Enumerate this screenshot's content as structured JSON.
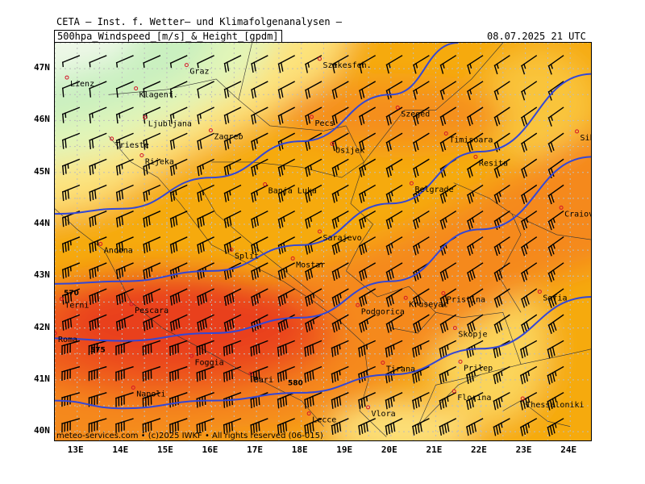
{
  "header": {
    "org": "CETA – Inst. f. Wetter– und Klimafolgenanalysen –",
    "title": "500hpa_Windspeed_[m/s]_&_Height_[gpdm]",
    "valid_time": "08.07.2025 21 UTC"
  },
  "axes": {
    "lat_labels": [
      "47N",
      "46N",
      "45N",
      "44N",
      "43N",
      "42N",
      "41N",
      "40N"
    ],
    "lat_values": [
      47,
      46,
      45,
      44,
      43,
      42,
      41,
      40
    ],
    "lon_labels": [
      "13E",
      "14E",
      "15E",
      "16E",
      "17E",
      "18E",
      "19E",
      "20E",
      "21E",
      "22E",
      "23E",
      "24E"
    ],
    "lon_values": [
      13,
      14,
      15,
      16,
      17,
      18,
      19,
      20,
      21,
      22,
      23,
      24
    ]
  },
  "extent": {
    "lon_min": 12.5,
    "lon_max": 24.5,
    "lat_min": 39.8,
    "lat_max": 47.5
  },
  "contours": [
    {
      "label": "570",
      "points": [
        [
          12.5,
          42.85
        ],
        [
          14,
          42.9
        ],
        [
          16,
          43.1
        ],
        [
          18,
          43.6
        ],
        [
          20,
          44.4
        ],
        [
          22,
          45.4
        ],
        [
          24.5,
          46.9
        ]
      ]
    },
    {
      "label": "575",
      "points": [
        [
          12.5,
          41.8
        ],
        [
          14,
          41.75
        ],
        [
          16,
          41.9
        ],
        [
          18,
          42.2
        ],
        [
          20,
          42.9
        ],
        [
          22,
          43.9
        ],
        [
          24.5,
          45.3
        ]
      ]
    },
    {
      "label": "580",
      "points": [
        [
          12.5,
          40.6
        ],
        [
          14,
          40.45
        ],
        [
          16,
          40.6
        ],
        [
          18,
          40.75
        ],
        [
          20,
          41.1
        ],
        [
          22,
          41.6
        ],
        [
          24.5,
          42.6
        ]
      ]
    },
    {
      "label": "",
      "points": [
        [
          12.5,
          44.2
        ],
        [
          14,
          44.3
        ],
        [
          16,
          44.9
        ],
        [
          18,
          45.6
        ],
        [
          20,
          46.5
        ],
        [
          21.5,
          47.5
        ]
      ]
    }
  ],
  "cities": [
    {
      "name": "Lienz",
      "lon": 12.77,
      "lat": 46.83
    },
    {
      "name": "Graz",
      "lon": 15.44,
      "lat": 47.07
    },
    {
      "name": "Szekesfeh.",
      "lon": 18.41,
      "lat": 47.19
    },
    {
      "name": "Klagenf.",
      "lon": 14.31,
      "lat": 46.62
    },
    {
      "name": "Szeged",
      "lon": 20.15,
      "lat": 46.25
    },
    {
      "name": "Ljubljana",
      "lon": 14.51,
      "lat": 46.06
    },
    {
      "name": "Pecs",
      "lon": 18.23,
      "lat": 46.07
    },
    {
      "name": "Zagreb",
      "lon": 15.98,
      "lat": 45.81
    },
    {
      "name": "Trieste",
      "lon": 13.77,
      "lat": 45.65
    },
    {
      "name": "Timisoara",
      "lon": 21.23,
      "lat": 45.75
    },
    {
      "name": "Sibiu",
      "lon": 24.15,
      "lat": 45.79
    },
    {
      "name": "Osijek",
      "lon": 18.69,
      "lat": 45.55
    },
    {
      "name": "Rijeka",
      "lon": 14.44,
      "lat": 45.33
    },
    {
      "name": "Resita",
      "lon": 21.89,
      "lat": 45.3
    },
    {
      "name": "Banja Luka",
      "lon": 17.19,
      "lat": 44.77
    },
    {
      "name": "Belgrade",
      "lon": 20.46,
      "lat": 44.79
    },
    {
      "name": "Craiova",
      "lon": 23.8,
      "lat": 44.32
    },
    {
      "name": "Sarajevo",
      "lon": 18.41,
      "lat": 43.86
    },
    {
      "name": "Ancona",
      "lon": 13.52,
      "lat": 43.62
    },
    {
      "name": "Split",
      "lon": 16.44,
      "lat": 43.51
    },
    {
      "name": "Mostar",
      "lon": 17.81,
      "lat": 43.34
    },
    {
      "name": "Pristina",
      "lon": 21.17,
      "lat": 42.67
    },
    {
      "name": "Sofia",
      "lon": 23.32,
      "lat": 42.7
    },
    {
      "name": "Terni",
      "lon": 12.65,
      "lat": 42.56
    },
    {
      "name": "Kruseyac",
      "lon": 20.33,
      "lat": 42.58
    },
    {
      "name": "Pescara",
      "lon": 14.21,
      "lat": 42.46
    },
    {
      "name": "Podgorica",
      "lon": 19.26,
      "lat": 42.44
    },
    {
      "name": "Skopje",
      "lon": 21.43,
      "lat": 42.0
    },
    {
      "name": "Roma",
      "lon": 12.5,
      "lat": 41.9
    },
    {
      "name": "Foggia",
      "lon": 15.55,
      "lat": 41.46
    },
    {
      "name": "Tirana",
      "lon": 19.82,
      "lat": 41.33
    },
    {
      "name": "Prilep",
      "lon": 21.55,
      "lat": 41.35
    },
    {
      "name": "Bari",
      "lon": 16.87,
      "lat": 41.12
    },
    {
      "name": "Napoli",
      "lon": 14.25,
      "lat": 40.85
    },
    {
      "name": "Florina",
      "lon": 21.41,
      "lat": 40.78
    },
    {
      "name": "Thessaloniki",
      "lon": 22.94,
      "lat": 40.64
    },
    {
      "name": "Vlora",
      "lon": 19.49,
      "lat": 40.47
    },
    {
      "name": "Lecce",
      "lon": 18.17,
      "lat": 40.35
    }
  ],
  "credits": "meteo-services.com • (c)2025 IWKF • All rights reserved (06-015)"
}
